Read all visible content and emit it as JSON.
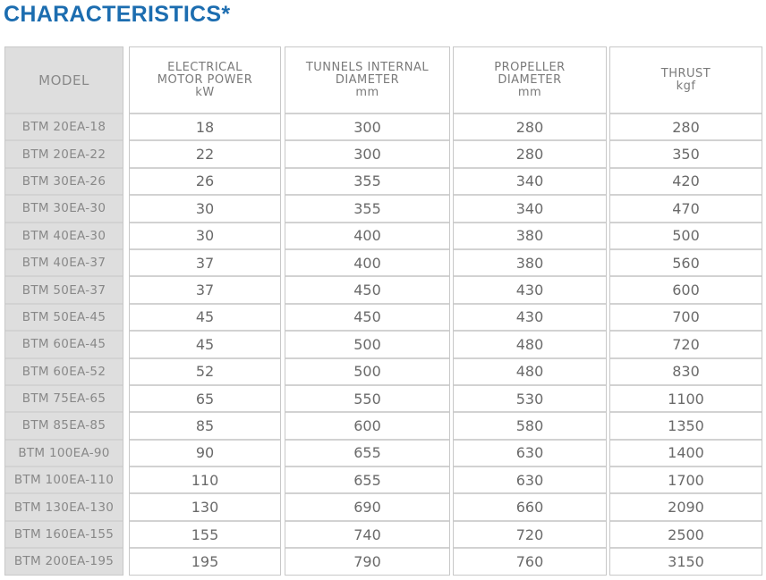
{
  "title": "CHARACTERISTICS*",
  "columns": [
    {
      "header": [
        "MODEL"
      ]
    },
    {
      "header": [
        "ELECTRICAL",
        "MOTOR POWER",
        "kW"
      ]
    },
    {
      "header": [
        "TUNNELS INTERNAL",
        "DIAMETER",
        "mm"
      ]
    },
    {
      "header": [
        "PROPELLER",
        "DIAMETER",
        "mm"
      ]
    },
    {
      "header": [
        "THRUST",
        "kgf"
      ]
    }
  ],
  "rows": [
    [
      "BTM 20EA-18",
      "18",
      "300",
      "280",
      "280"
    ],
    [
      "BTM 20EA-22",
      "22",
      "300",
      "280",
      "350"
    ],
    [
      "BTM 30EA-26",
      "26",
      "355",
      "340",
      "420"
    ],
    [
      "BTM 30EA-30",
      "30",
      "355",
      "340",
      "470"
    ],
    [
      "BTM 40EA-30",
      "30",
      "400",
      "380",
      "500"
    ],
    [
      "BTM 40EA-37",
      "37",
      "400",
      "380",
      "560"
    ],
    [
      "BTM 50EA-37",
      "37",
      "450",
      "430",
      "600"
    ],
    [
      "BTM 50EA-45",
      "45",
      "450",
      "430",
      "700"
    ],
    [
      "BTM 60EA-45",
      "45",
      "500",
      "480",
      "720"
    ],
    [
      "BTM 60EA-52",
      "52",
      "500",
      "480",
      "830"
    ],
    [
      "BTM 75EA-65",
      "65",
      "550",
      "530",
      "1100"
    ],
    [
      "BTM 85EA-85",
      "85",
      "600",
      "580",
      "1350"
    ],
    [
      "BTM 100EA-90",
      "90",
      "655",
      "630",
      "1400"
    ],
    [
      "BTM 100EA-110",
      "110",
      "655",
      "630",
      "1700"
    ],
    [
      "BTM 130EA-130",
      "130",
      "690",
      "660",
      "2090"
    ],
    [
      "BTM 160EA-155",
      "155",
      "740",
      "720",
      "2500"
    ],
    [
      "BTM 200EA-195",
      "195",
      "790",
      "760",
      "3150"
    ]
  ],
  "colors": {
    "title": "#1c6db0",
    "model_bg": "#dedede",
    "border": "#d2d2d2"
  }
}
